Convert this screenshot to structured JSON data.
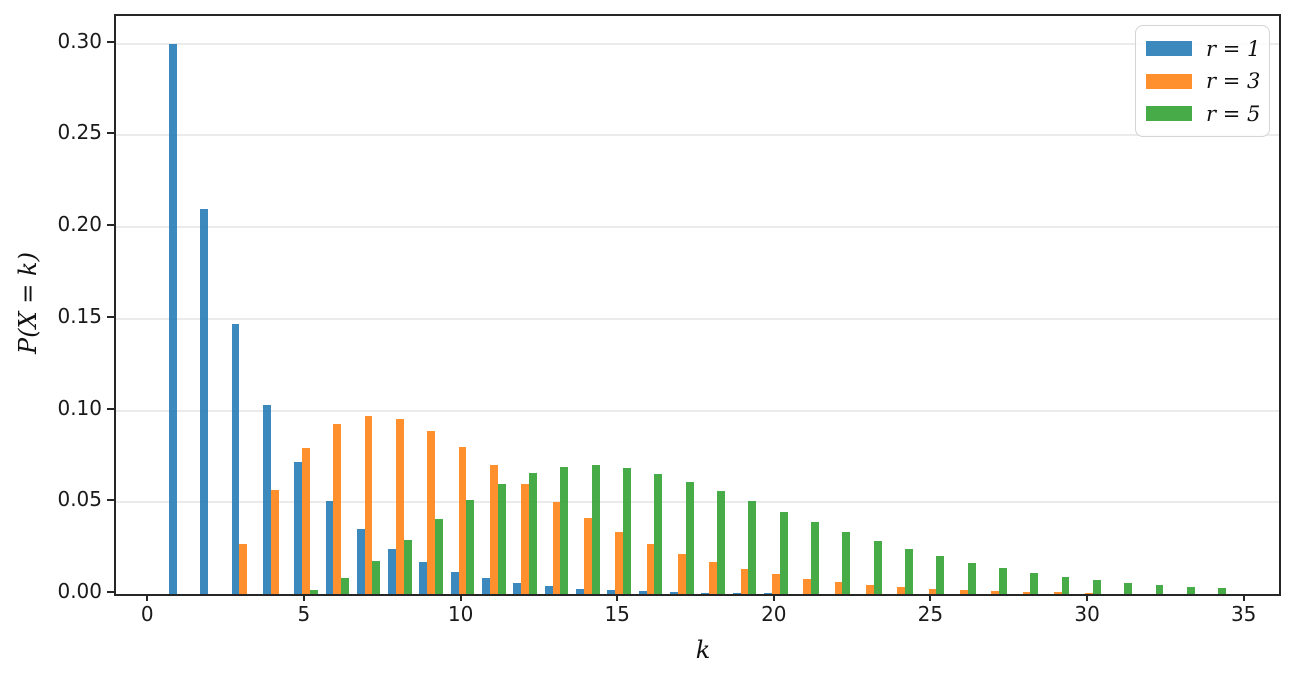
{
  "chart_data": {
    "type": "bar",
    "title": "",
    "xlabel": "k",
    "ylabel": "P(X = k)",
    "xlim": [
      -1.0625,
      36.0625
    ],
    "ylim": [
      0,
      0.315
    ],
    "grid": "horizontal-light",
    "background_color": "#ffffff",
    "spine_color": "#262626",
    "gridline_color": "#ebebeb",
    "bar_width_units": 0.25,
    "legend_position": "upper-right",
    "xticks": [
      0,
      5,
      10,
      15,
      20,
      25,
      30,
      35
    ],
    "xtick_labels": [
      "0",
      "5",
      "10",
      "15",
      "20",
      "25",
      "30",
      "35"
    ],
    "yticks": [
      0,
      0.05,
      0.1,
      0.15,
      0.2,
      0.25,
      0.3
    ],
    "ytick_labels": [
      "0.00",
      "0.05",
      "0.10",
      "0.15",
      "0.20",
      "0.25",
      "0.30"
    ],
    "series": [
      {
        "name": "r = 1",
        "color": "rgba(31,119,180,0.87)",
        "legend_color": "rgba(31,119,180,0.87)",
        "offset": -0.25,
        "start_k": 1,
        "values": [
          0.3,
          0.21,
          0.147,
          0.1029,
          0.07203,
          0.05042,
          0.03529,
          0.02471,
          0.01729,
          0.01211,
          0.00847,
          0.00593,
          0.00415,
          0.00291,
          0.00203,
          0.00142,
          0.001,
          0.0007,
          0.00049,
          0.00034
        ]
      },
      {
        "name": "r = 3",
        "color": "rgba(255,127,14,0.87)",
        "legend_color": "rgba(255,127,14,0.87)",
        "offset": 0,
        "start_k": 3,
        "values": [
          0.027,
          0.0567,
          0.07938,
          0.09261,
          0.09724,
          0.0953,
          0.08894,
          0.08005,
          0.07004,
          0.05993,
          0.05034,
          0.04164,
          0.03401,
          0.02747,
          0.02197,
          0.01743,
          0.01373,
          0.01074,
          0.00835,
          0.00646,
          0.00498,
          0.00382,
          0.00291,
          0.00222,
          0.00168,
          0.00127,
          0.00096,
          0.00072
        ]
      },
      {
        "name": "r = 5",
        "color": "rgba(44,160,44,0.87)",
        "legend_color": "rgba(44,160,44,0.87)",
        "offset": 0.25,
        "start_k": 5,
        "values": [
          0.00243,
          0.0085,
          0.01786,
          0.02917,
          0.04084,
          0.05146,
          0.06004,
          0.06604,
          0.06934,
          0.07011,
          0.06871,
          0.06559,
          0.06121,
          0.05603,
          0.05043,
          0.04472,
          0.03913,
          0.03383,
          0.02895,
          0.02453,
          0.0206,
          0.01717,
          0.0142,
          0.01167,
          0.00953,
          0.00774,
          0.00625,
          0.00502,
          0.00402,
          0.0032
        ]
      }
    ]
  }
}
